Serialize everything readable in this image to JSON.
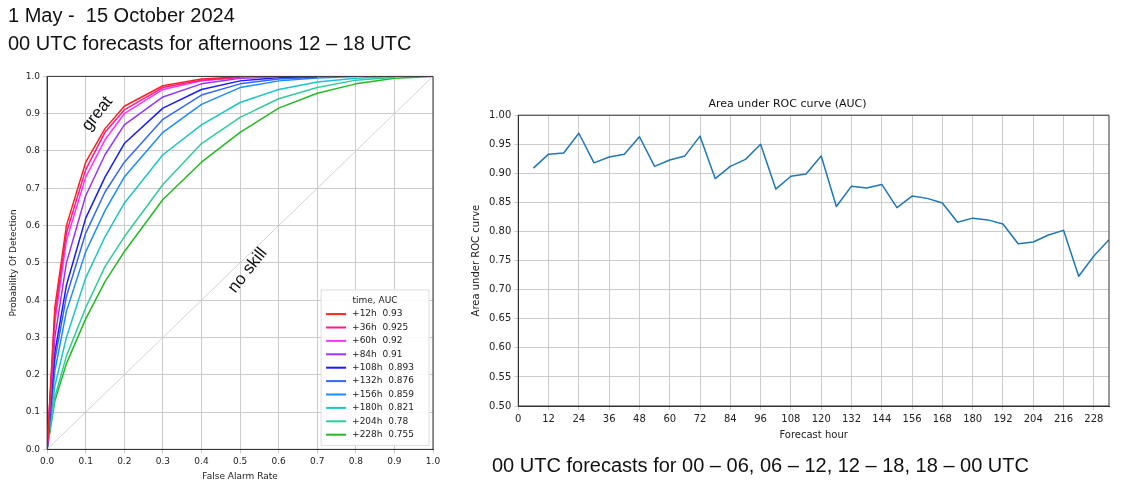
{
  "chart_data": [
    {
      "type": "line",
      "title": "1 May -  15 October 2024",
      "subtitle": "00 UTC forecasts for afternoons 12 – 18 UTC",
      "xlabel": "False Alarm Rate",
      "ylabel": "Probability Of Detection",
      "legend_title": "time, AUC",
      "legend": "bottom right",
      "grid": true,
      "xlim": [
        0,
        1
      ],
      "ylim": [
        0,
        1
      ],
      "xticks": [
        {
          "value": 0,
          "label": "0.0"
        },
        0.1,
        0.2,
        0.3,
        0.4,
        0.5,
        0.6,
        0.7,
        0.8,
        0.9,
        {
          "value": 1,
          "label": "1.0"
        }
      ],
      "yticks": [
        {
          "value": 0,
          "label": "0.0"
        },
        0.1,
        0.2,
        0.3,
        0.4,
        0.5,
        0.6,
        0.7,
        0.8,
        0.9,
        {
          "value": 1,
          "label": "1.0"
        }
      ],
      "annotations": [
        "great",
        "no skill"
      ],
      "series": [
        {
          "color": "#c8c8c8",
          "x": [
            0,
            1
          ],
          "values": [
            0,
            1
          ]
        },
        {
          "name": "+12h  0.93",
          "color": "#ff2020",
          "x": [
            0,
            0.02,
            0.05,
            0.1,
            0.15,
            0.2,
            0.3,
            0.4,
            0.5
          ],
          "values": [
            0,
            0.38,
            0.6,
            0.77,
            0.86,
            0.92,
            0.975,
            0.993,
            0.999
          ]
        },
        {
          "name": "+36h  0.925",
          "color": "#ff1a8c",
          "x": [
            0,
            0.02,
            0.05,
            0.1,
            0.15,
            0.2,
            0.3,
            0.4,
            0.5
          ],
          "values": [
            0,
            0.36,
            0.58,
            0.75,
            0.85,
            0.91,
            0.97,
            0.99,
            0.998
          ]
        },
        {
          "name": "+60h  0.92",
          "color": "#ff33ff",
          "x": [
            0,
            0.02,
            0.05,
            0.1,
            0.15,
            0.2,
            0.3,
            0.4,
            0.5,
            0.6
          ],
          "values": [
            0,
            0.34,
            0.56,
            0.73,
            0.83,
            0.9,
            0.965,
            0.988,
            0.997,
            1
          ]
        },
        {
          "name": "+84h  0.91",
          "color": "#9933ff",
          "x": [
            0,
            0.02,
            0.05,
            0.1,
            0.15,
            0.2,
            0.3,
            0.4,
            0.5,
            0.6
          ],
          "values": [
            0,
            0.3,
            0.5,
            0.68,
            0.79,
            0.87,
            0.945,
            0.98,
            0.995,
            0.999
          ]
        },
        {
          "name": "+108h  0.893",
          "color": "#1a1aff",
          "x": [
            0,
            0.02,
            0.05,
            0.1,
            0.15,
            0.2,
            0.3,
            0.4,
            0.5,
            0.6,
            0.7
          ],
          "values": [
            0,
            0.26,
            0.44,
            0.62,
            0.73,
            0.82,
            0.915,
            0.965,
            0.988,
            0.997,
            1
          ]
        },
        {
          "name": "+132h  0.876",
          "color": "#3366ff",
          "x": [
            0,
            0.02,
            0.05,
            0.1,
            0.15,
            0.2,
            0.3,
            0.4,
            0.5,
            0.6,
            0.7
          ],
          "values": [
            0,
            0.24,
            0.41,
            0.58,
            0.69,
            0.77,
            0.885,
            0.95,
            0.98,
            0.993,
            0.998
          ]
        },
        {
          "name": "+156h  0.859",
          "color": "#1a8cff",
          "x": [
            0,
            0.02,
            0.05,
            0.1,
            0.15,
            0.2,
            0.3,
            0.4,
            0.5,
            0.6,
            0.7,
            0.8
          ],
          "values": [
            0,
            0.21,
            0.37,
            0.53,
            0.64,
            0.73,
            0.85,
            0.925,
            0.97,
            0.988,
            0.996,
            1
          ]
        },
        {
          "name": "+180h  0.821",
          "color": "#1ac6c6",
          "x": [
            0,
            0.02,
            0.05,
            0.1,
            0.15,
            0.2,
            0.3,
            0.4,
            0.5,
            0.6,
            0.7,
            0.8,
            0.9
          ],
          "values": [
            0,
            0.17,
            0.3,
            0.46,
            0.57,
            0.66,
            0.79,
            0.87,
            0.93,
            0.965,
            0.985,
            0.995,
            1
          ]
        },
        {
          "name": "+204h  0.78",
          "color": "#33cc99",
          "x": [
            0,
            0.02,
            0.05,
            0.1,
            0.15,
            0.2,
            0.3,
            0.4,
            0.5,
            0.6,
            0.7,
            0.8,
            0.9
          ],
          "values": [
            0,
            0.14,
            0.25,
            0.38,
            0.49,
            0.57,
            0.71,
            0.82,
            0.89,
            0.94,
            0.97,
            0.99,
            0.998
          ]
        },
        {
          "name": "+228h  0.755",
          "color": "#22bb22",
          "x": [
            0,
            0.02,
            0.05,
            0.1,
            0.15,
            0.2,
            0.3,
            0.4,
            0.5,
            0.6,
            0.7,
            0.8,
            0.9,
            1
          ],
          "values": [
            0,
            0.13,
            0.23,
            0.35,
            0.45,
            0.53,
            0.67,
            0.77,
            0.85,
            0.915,
            0.955,
            0.98,
            0.995,
            1
          ]
        }
      ]
    },
    {
      "type": "line",
      "title": "Area under ROC curve (AUC)",
      "xlabel": "Forecast hour",
      "ylabel": "Area under ROC curve",
      "grid": true,
      "annotations": [
        "00 UTC forecasts for 00 – 06, 06 – 12, 12 – 18, 18 – 00 UTC"
      ],
      "xlim": [
        0,
        234
      ],
      "ylim": [
        0.5,
        1
      ],
      "xticks": [
        0,
        12,
        24,
        36,
        48,
        60,
        72,
        84,
        96,
        108,
        120,
        132,
        144,
        156,
        168,
        180,
        192,
        204,
        216,
        228
      ],
      "yticks": [
        {
          "value": 0.5,
          "label": "0.50"
        },
        0.55,
        {
          "value": 0.6,
          "label": "0.60"
        },
        0.65,
        {
          "value": 0.7,
          "label": "0.70"
        },
        0.75,
        {
          "value": 0.8,
          "label": "0.80"
        },
        0.85,
        {
          "value": 0.9,
          "label": "0.90"
        },
        0.95,
        {
          "value": 1,
          "label": "1.00"
        }
      ],
      "x": [
        6,
        12,
        18,
        24,
        30,
        36,
        42,
        48,
        54,
        60,
        66,
        72,
        78,
        84,
        90,
        96,
        102,
        108,
        114,
        120,
        126,
        132,
        138,
        144,
        150,
        156,
        162,
        168,
        174,
        180,
        186,
        192,
        198,
        204,
        210,
        216,
        222,
        228,
        234
      ],
      "series": [
        {
          "color": "#1f77b4",
          "values": [
            0.909,
            0.933,
            0.935,
            0.969,
            0.918,
            0.928,
            0.933,
            0.963,
            0.912,
            0.923,
            0.93,
            0.964,
            0.891,
            0.912,
            0.924,
            0.95,
            0.873,
            0.895,
            0.899,
            0.93,
            0.843,
            0.878,
            0.875,
            0.881,
            0.841,
            0.861,
            0.857,
            0.849,
            0.816,
            0.823,
            0.82,
            0.813,
            0.779,
            0.782,
            0.794,
            0.802,
            0.723,
            0.758,
            0.786
          ]
        }
      ]
    }
  ]
}
